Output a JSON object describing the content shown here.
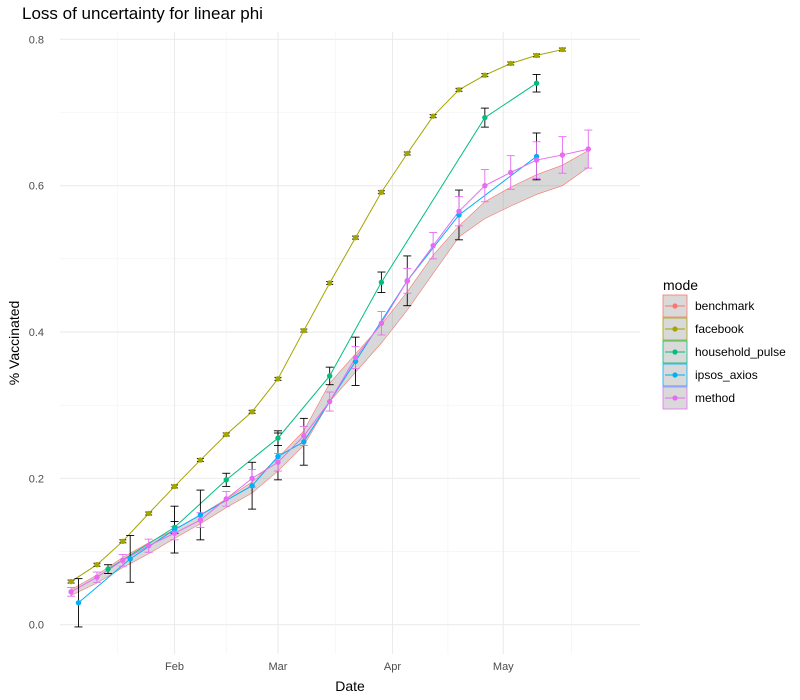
{
  "chart_data": {
    "type": "line",
    "title": "Loss of uncertainty for linear phi",
    "xlabel": "Date",
    "ylabel": "% Vaccinated",
    "x_axis": {
      "type": "date",
      "range": [
        "2021-01-01",
        "2021-06-07"
      ],
      "ticks": [
        {
          "date": "2021-02-01",
          "label": "Feb"
        },
        {
          "date": "2021-03-01",
          "label": "Mar"
        },
        {
          "date": "2021-04-01",
          "label": "Apr"
        },
        {
          "date": "2021-05-01",
          "label": "May"
        }
      ]
    },
    "y_axis": {
      "range": [
        -0.04,
        0.81
      ],
      "ticks": [
        0.0,
        0.2,
        0.4,
        0.6,
        0.8
      ],
      "tick_labels": [
        "0.0",
        "0.2",
        "0.4",
        "0.6",
        "0.8"
      ]
    },
    "grid": true,
    "legend": {
      "title": "mode",
      "placement": "right",
      "entries": [
        "benchmark",
        "facebook",
        "household_pulse",
        "ipsos_axios",
        "method"
      ]
    },
    "series": [
      {
        "name": "benchmark",
        "color": "#F8766D",
        "band": true,
        "x": [
          "2021-01-04",
          "2021-01-11",
          "2021-01-18",
          "2021-01-25",
          "2021-02-01",
          "2021-02-08",
          "2021-02-15",
          "2021-02-22",
          "2021-03-01",
          "2021-03-08",
          "2021-03-15",
          "2021-03-22",
          "2021-03-29",
          "2021-04-05",
          "2021-04-12",
          "2021-04-19",
          "2021-04-26",
          "2021-05-03",
          "2021-05-10",
          "2021-05-17",
          "2021-05-24"
        ],
        "lower": [
          0.04,
          0.057,
          0.078,
          0.097,
          0.118,
          0.138,
          0.16,
          0.18,
          0.21,
          0.245,
          0.305,
          0.345,
          0.385,
          0.43,
          0.48,
          0.53,
          0.555,
          0.572,
          0.588,
          0.6,
          0.625
        ],
        "upper": [
          0.048,
          0.068,
          0.092,
          0.112,
          0.13,
          0.15,
          0.172,
          0.195,
          0.228,
          0.265,
          0.33,
          0.37,
          0.41,
          0.455,
          0.505,
          0.545,
          0.578,
          0.598,
          0.615,
          0.628,
          0.648
        ]
      },
      {
        "name": "facebook",
        "color": "#A3A500",
        "x": [
          "2021-01-04",
          "2021-01-11",
          "2021-01-18",
          "2021-01-25",
          "2021-02-01",
          "2021-02-08",
          "2021-02-15",
          "2021-02-22",
          "2021-03-01",
          "2021-03-08",
          "2021-03-15",
          "2021-03-22",
          "2021-03-29",
          "2021-04-05",
          "2021-04-12",
          "2021-04-19",
          "2021-04-26",
          "2021-05-03",
          "2021-05-10",
          "2021-05-17",
          "2021-05-24"
        ],
        "values": [
          0.059,
          0.082,
          0.114,
          0.152,
          0.189,
          0.225,
          0.26,
          0.291,
          0.336,
          0.402,
          0.467,
          0.529,
          0.591,
          0.644,
          0.695,
          0.731,
          0.751,
          0.767,
          0.778,
          0.786,
          null
        ]
      },
      {
        "name": "household_pulse",
        "color": "#00BF7D",
        "error_bars": true,
        "x": [
          "2021-01-14",
          "2021-02-01",
          "2021-02-15",
          "2021-03-01",
          "2021-03-15",
          "2021-03-29",
          "2021-04-26",
          "2021-05-10"
        ],
        "values": [
          0.076,
          0.133,
          0.198,
          0.255,
          0.34,
          0.468,
          0.693,
          0.74
        ],
        "errors": [
          0.006,
          0.008,
          0.009,
          0.01,
          0.012,
          0.014,
          0.013,
          0.012
        ]
      },
      {
        "name": "ipsos_axios",
        "color": "#00B0F6",
        "error_bars": true,
        "x": [
          "2021-01-06",
          "2021-01-20",
          "2021-02-01",
          "2021-02-08",
          "2021-02-22",
          "2021-03-01",
          "2021-03-08",
          "2021-03-22",
          "2021-04-05",
          "2021-04-19",
          "2021-05-10"
        ],
        "values": [
          0.03,
          0.09,
          0.13,
          0.15,
          0.19,
          0.23,
          0.25,
          0.36,
          0.47,
          0.56,
          0.64
        ],
        "errors": [
          0.033,
          0.032,
          0.032,
          0.034,
          0.032,
          0.032,
          0.032,
          0.033,
          0.034,
          0.034,
          0.032
        ]
      },
      {
        "name": "method",
        "color": "#E76BF3",
        "error_bars": true,
        "x": [
          "2021-01-04",
          "2021-01-11",
          "2021-01-18",
          "2021-01-25",
          "2021-02-01",
          "2021-02-08",
          "2021-02-15",
          "2021-02-22",
          "2021-03-01",
          "2021-03-08",
          "2021-03-15",
          "2021-03-22",
          "2021-03-29",
          "2021-04-05",
          "2021-04-12",
          "2021-04-19",
          "2021-04-26",
          "2021-05-03",
          "2021-05-10",
          "2021-05-17",
          "2021-05-24"
        ],
        "values": [
          0.045,
          0.065,
          0.088,
          0.108,
          0.125,
          0.143,
          0.172,
          0.2,
          0.222,
          0.258,
          0.305,
          0.365,
          0.412,
          0.47,
          0.518,
          0.565,
          0.6,
          0.618,
          0.635,
          0.642,
          0.65
        ],
        "errors": [
          0.006,
          0.007,
          0.008,
          0.009,
          0.009,
          0.01,
          0.01,
          0.012,
          0.012,
          0.013,
          0.013,
          0.015,
          0.016,
          0.017,
          0.018,
          0.02,
          0.022,
          0.023,
          0.025,
          0.025,
          0.026
        ]
      }
    ]
  }
}
